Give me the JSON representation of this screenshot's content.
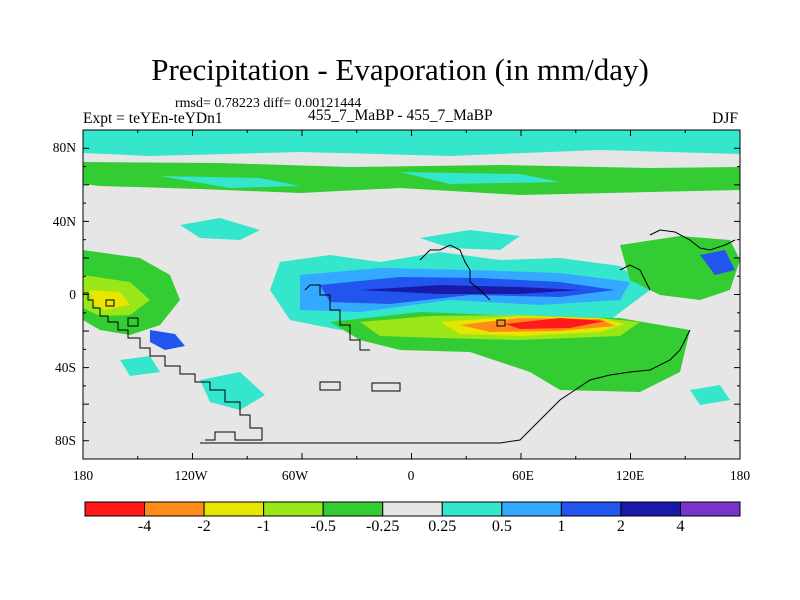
{
  "title": "Precipitation - Evaporation (in mm/day)",
  "stats_line": "rmsd= 0.78223  diff= 0.00121444",
  "experiment_label": "Expt = teYEn-teYDn1",
  "subtitle": "455_7_MaBP - 455_7_MaBP",
  "season": "DJF",
  "y_axis_labels": [
    "80N",
    "40N",
    "0",
    "40S",
    "80S"
  ],
  "x_axis_labels": [
    "180",
    "120W",
    "60W",
    "0",
    "60E",
    "120E",
    "180"
  ],
  "colorbar": {
    "colors": [
      "#ff1a1a",
      "#ff8c1a",
      "#e6e600",
      "#99e619",
      "#33cc33",
      "#e6e6e6",
      "#33e6cc",
      "#33aaff",
      "#2255ee",
      "#1a1aaa",
      "#7733cc"
    ],
    "labels": [
      "-4",
      "-2",
      "-1",
      "-0.5",
      "-0.25",
      "0.25",
      "0.5",
      "1",
      "2",
      "4"
    ]
  },
  "palette": {
    "neutral": "#e6e6e6",
    "cyan": "#33e6cc",
    "lightblue": "#33aaff",
    "blue": "#2255ee",
    "darkblue": "#1a1aaa",
    "green": "#33cc33",
    "lightgreen": "#99e619",
    "yellow": "#e6e600",
    "orange": "#ff8c1a",
    "red": "#ff1a1a"
  }
}
